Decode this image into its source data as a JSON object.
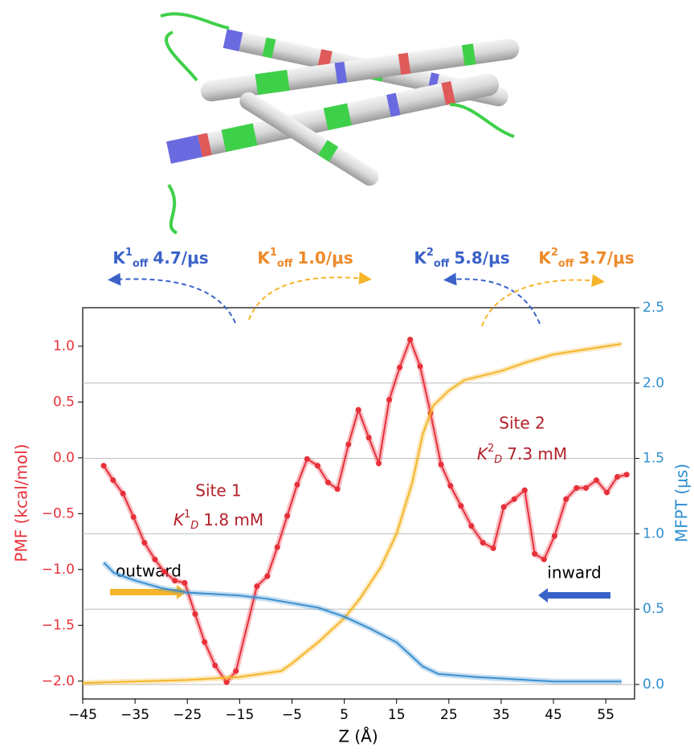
{
  "chart_data": {
    "type": "line",
    "xlabel": "Z (Å)",
    "ylabel": "PMF (kcal/mol)",
    "y2label": "MFPT (μs)",
    "xlim": [
      -45,
      60.5
    ],
    "ylim": [
      -2.16,
      1.345
    ],
    "y2lim": [
      -0.096,
      2.5
    ],
    "xticks": [
      {
        "value": -45,
        "label": "−45"
      },
      {
        "value": -35,
        "label": "−35"
      },
      {
        "value": -25,
        "label": "−25"
      },
      {
        "value": -15,
        "label": "−15"
      },
      {
        "value": -5,
        "label": "−5"
      },
      5,
      15,
      25,
      35,
      45,
      55
    ],
    "yticks": [
      {
        "value": -2.0,
        "label": "−2.0"
      },
      {
        "value": -1.5,
        "label": "−1.5"
      },
      {
        "value": -1.0,
        "label": "−1.0"
      },
      {
        "value": -0.5,
        "label": "−0.5"
      },
      {
        "value": 0,
        "label": "0.0"
      },
      0.5,
      {
        "value": 1,
        "label": "1.0"
      }
    ],
    "y2ticks": [
      {
        "value": 0,
        "label": "0.0"
      },
      0.5,
      {
        "value": 1,
        "label": "1.0"
      },
      1.5,
      {
        "value": 2,
        "label": "2.0"
      },
      2.5
    ],
    "ylabel_color": "#e8303a",
    "y2label_color": "#2f8fd0",
    "grid": true,
    "series": [
      {
        "color": "#e8303a",
        "markers": true,
        "x": [
          -41,
          -39.2,
          -37.3,
          -35.3,
          -33.2,
          -31.2,
          -29.4,
          -27.4,
          -25.5,
          -23.5,
          -21.7,
          -19.7,
          -17.5,
          -15.7,
          -11.7,
          -9.7,
          -7.8,
          -5.9,
          -4,
          -2.1,
          -0.1,
          1.9,
          3.7,
          5.8,
          7.7,
          9.7,
          11.6,
          13.6,
          15.6,
          17.6,
          19.5,
          21.5,
          23.5,
          25.3,
          27.3,
          29.3,
          31.5,
          33.5,
          35.5,
          37.5,
          39.5,
          41.4,
          43.2,
          45.2,
          47.4,
          49.4,
          51.2,
          53.2,
          55.2,
          57.2,
          59
        ],
        "values": [
          -0.07,
          -0.2,
          -0.32,
          -0.53,
          -0.76,
          -0.91,
          -1.02,
          -1.1,
          -1.12,
          -1.4,
          -1.65,
          -1.86,
          -2.01,
          -1.91,
          -1.15,
          -1.06,
          -0.8,
          -0.52,
          -0.24,
          -0.01,
          -0.07,
          -0.22,
          -0.28,
          0.12,
          0.43,
          0.18,
          -0.05,
          0.52,
          0.81,
          1.06,
          0.82,
          0.4,
          -0.06,
          -0.25,
          -0.43,
          -0.61,
          -0.76,
          -0.81,
          -0.44,
          -0.37,
          -0.29,
          -0.86,
          -0.91,
          -0.7,
          -0.37,
          -0.27,
          -0.27,
          -0.2,
          -0.31,
          -0.17,
          -0.15
        ]
      },
      {
        "color": "#f5b52a",
        "axis": "y2",
        "x": [
          -45,
          -25,
          -15,
          -7,
          -5,
          0,
          5,
          8,
          12,
          15,
          18,
          20,
          22,
          25,
          28,
          35,
          40,
          45,
          58
        ],
        "values": [
          0.01,
          0.03,
          0.05,
          0.09,
          0.14,
          0.28,
          0.44,
          0.57,
          0.78,
          1.0,
          1.34,
          1.66,
          1.85,
          1.95,
          2.02,
          2.08,
          2.14,
          2.19,
          2.26
        ]
      },
      {
        "color": "#3a8fd0",
        "axis": "y2",
        "x": [
          -41,
          -39,
          -35,
          -30,
          -25,
          -20,
          -15,
          -10,
          -5,
          0,
          5,
          10,
          15,
          20,
          23,
          30,
          40,
          45,
          58
        ],
        "values": [
          0.81,
          0.74,
          0.69,
          0.64,
          0.61,
          0.6,
          0.59,
          0.57,
          0.54,
          0.51,
          0.45,
          0.37,
          0.28,
          0.12,
          0.07,
          0.05,
          0.03,
          0.02,
          0.02
        ]
      }
    ],
    "sites": [
      {
        "name": "Site 1",
        "symbol": "K",
        "sup": "1",
        "sub": "D",
        "value": "1.8 mM",
        "color": "#b3202a"
      },
      {
        "name": "Site 2",
        "symbol": "K",
        "sup": "2",
        "sub": "D",
        "value": "7.3 mM",
        "color": "#b3202a"
      }
    ],
    "rates": [
      {
        "symbol": "K",
        "sup": "1",
        "sub": "off",
        "value": "4.7/μs",
        "color": "#3a62c8"
      },
      {
        "symbol": "K",
        "sup": "1",
        "sub": "off",
        "value": "1.0/μs",
        "color": "#ee8a2a"
      },
      {
        "symbol": "K",
        "sup": "2",
        "sub": "off",
        "value": "5.8/μs",
        "color": "#3a62c8"
      },
      {
        "symbol": "K",
        "sup": "2",
        "sub": "off",
        "value": "3.7/μs",
        "color": "#ee8a2a"
      }
    ],
    "directions": [
      "outward",
      "inward"
    ]
  }
}
